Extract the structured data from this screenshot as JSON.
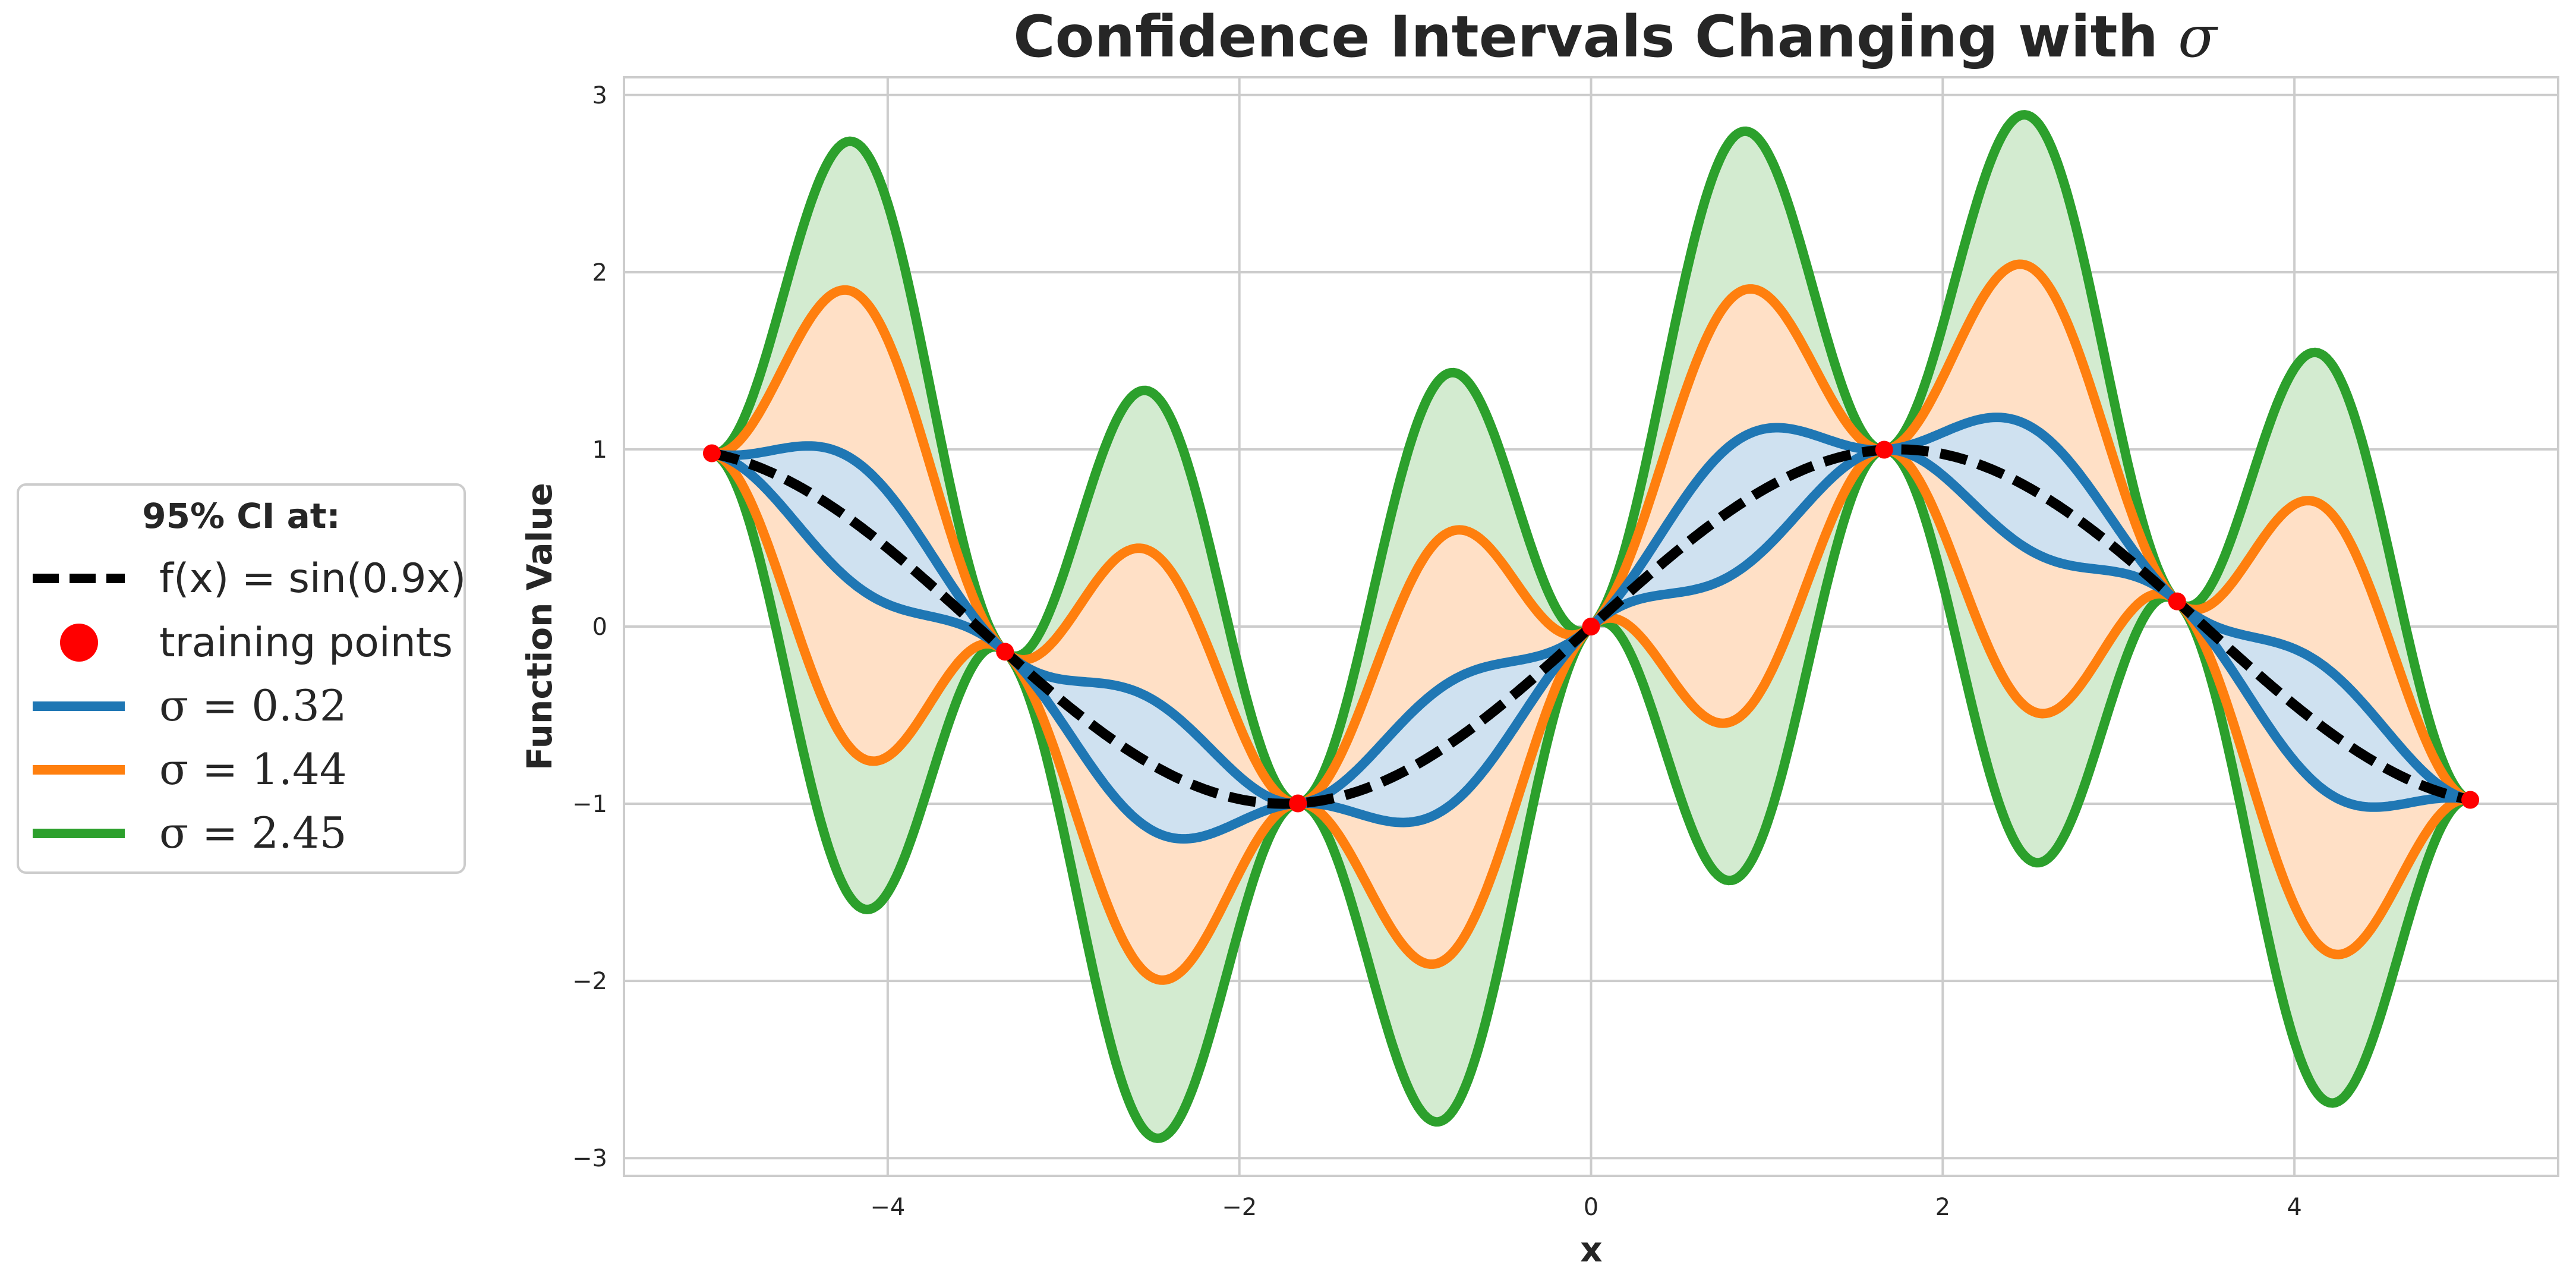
{
  "chart_data": {
    "type": "line",
    "title_prefix": "Confidence Intervals Changing with ",
    "title_symbol": "σ",
    "xlabel": "x",
    "ylabel": "Function Value",
    "xlim": [
      -5.5,
      5.5
    ],
    "ylim": [
      -3.1,
      3.1
    ],
    "xticks": [
      -4,
      -2,
      0,
      2,
      4
    ],
    "yticks": [
      -3,
      -2,
      -1,
      0,
      1,
      2,
      3
    ],
    "xtick_labels": [
      "−4",
      "−2",
      "0",
      "2",
      "4"
    ],
    "ytick_labels": [
      "−3",
      "−2",
      "−1",
      "0",
      "1",
      "2",
      "3"
    ],
    "grid": true,
    "true_function": {
      "label": "f(x) = sin(0.9x)",
      "color": "#000000",
      "frequency": 0.9,
      "style": "dashed"
    },
    "training_points": {
      "label": "training points",
      "color": "#ff0000",
      "x": [
        -5,
        -3.333,
        -1.667,
        0,
        1.667,
        3.333,
        5
      ],
      "y": [
        0.978,
        -0.142,
        -0.998,
        0.0,
        0.998,
        0.142,
        -0.978
      ]
    },
    "series": [
      {
        "sigma_label": "σ = 0.32",
        "sigma": 0.32,
        "color": "#1f77b4",
        "fill": "#cfe1f0",
        "interval_half_width": [
          0.0,
          0.35,
          0.0,
          0.37,
          0.0,
          0.35,
          0.0,
          0.37,
          0.0,
          0.35,
          0.0,
          0.35,
          0.0
        ]
      },
      {
        "sigma_label": "σ = 1.44",
        "sigma": 1.44,
        "color": "#ff7f0e",
        "fill": "#ffe0c6",
        "interval_half_width": [
          0.0,
          1.3,
          0.0,
          1.2,
          0.0,
          1.2,
          0.0,
          1.2,
          0.0,
          1.25,
          0.0,
          1.25,
          0.0
        ]
      },
      {
        "sigma_label": "σ = 2.45",
        "sigma": 2.45,
        "color": "#2ca02c",
        "fill": "#d3ebd0",
        "interval_half_width": [
          0.0,
          2.15,
          0.0,
          2.1,
          0.0,
          2.1,
          0.0,
          2.1,
          0.0,
          2.1,
          0.0,
          2.1,
          0.0
        ]
      }
    ],
    "legend": {
      "title": "95% CI at:",
      "placement": "left-outside"
    }
  }
}
